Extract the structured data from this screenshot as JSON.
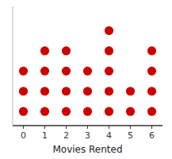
{
  "chart_data": {
    "type": "dot",
    "xlabel": "Movies Rented",
    "x": [
      0,
      1,
      2,
      3,
      4,
      5,
      6
    ],
    "values": [
      3,
      4,
      4,
      3,
      5,
      2,
      4
    ],
    "color": "#cc0000",
    "xlim": [
      -0.5,
      6.5
    ],
    "xticks": [
      0,
      1,
      2,
      3,
      4,
      5,
      6
    ],
    "ylim": [
      0.3,
      6.2
    ],
    "tick_labels": "x"
  }
}
